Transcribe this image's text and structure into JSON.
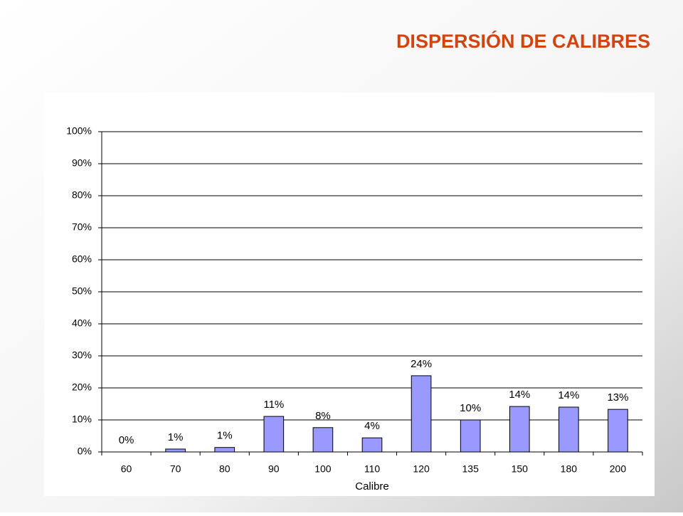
{
  "chart_data": {
    "type": "bar",
    "title": "DISPERSIÓN DE CALIBRES",
    "x_label": "Calibre",
    "categories": [
      "60",
      "70",
      "80",
      "90",
      "100",
      "110",
      "120",
      "135",
      "150",
      "180",
      "200"
    ],
    "values": [
      0,
      0.9,
      1.4,
      11.1,
      7.6,
      4.4,
      23.8,
      10,
      14.2,
      14,
      13.3
    ],
    "value_labels": [
      "0%",
      "1%",
      "1%",
      "11%",
      "8%",
      "4%",
      "24%",
      "10%",
      "14%",
      "14%",
      "13%"
    ],
    "color": "#9999ff",
    "ylim": [
      0,
      100
    ],
    "yticks": [
      {
        "value": 0,
        "label": "0%"
      },
      {
        "value": 10,
        "label": "10%"
      },
      {
        "value": 20,
        "label": "20%"
      },
      {
        "value": 30,
        "label": "30%"
      },
      {
        "value": 40,
        "label": "40%"
      },
      {
        "value": 50,
        "label": "50%"
      },
      {
        "value": 60,
        "label": "60%"
      },
      {
        "value": 70,
        "label": "70%"
      },
      {
        "value": 80,
        "label": "80%"
      },
      {
        "value": 90,
        "label": "90%"
      },
      {
        "value": 100,
        "label": "100%"
      }
    ],
    "grid": true
  }
}
